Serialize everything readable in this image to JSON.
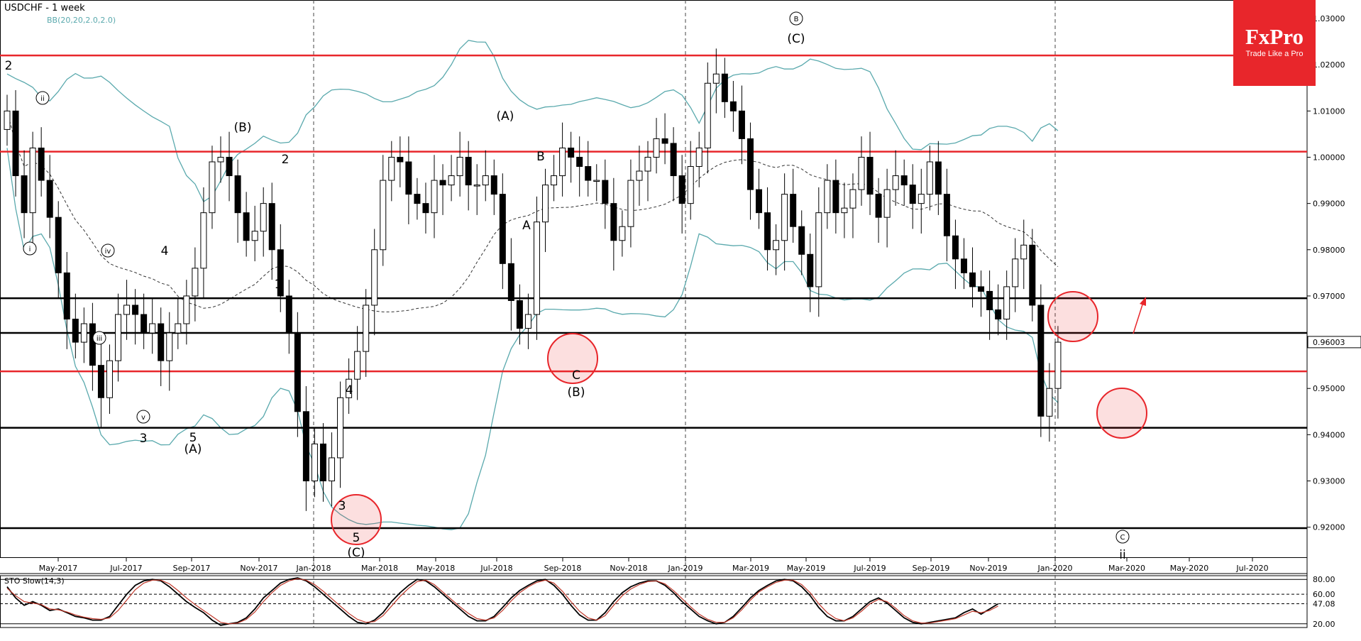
{
  "header": {
    "title": "USDCHF - 1 week",
    "indicator": "BB(20,20,2.0,2.0)"
  },
  "logo": {
    "brand": "FxPro",
    "tagline": "Trade Like a Pro"
  },
  "colors": {
    "accent": "#e8262b",
    "bollinger": "#5aa9ad",
    "resistance": "#e8262b",
    "support": "#000000",
    "candle_up": "#ffffff",
    "candle_down": "#000000",
    "sto_k": "#000000",
    "sto_d": "#c0392b"
  },
  "chart_data": [
    {
      "type": "candlestick",
      "symbol": "USDCHF",
      "timeframe": "1 week",
      "ylim": [
        0.9135,
        1.034
      ],
      "y_ticks": [
        "1.03000",
        "1.02000",
        "1.01000",
        "1.00000",
        "0.99000",
        "0.98000",
        "0.97000",
        "0.96000",
        "0.95000",
        "0.94000",
        "0.93000",
        "0.92000"
      ],
      "current_price": "0.96003",
      "x_ticks": [
        "May-2017",
        "Jul-2017",
        "Sep-2017",
        "Nov-2017",
        "Jan-2018",
        "Mar-2018",
        "May-2018",
        "Jul-2018",
        "Sep-2018",
        "Nov-2018",
        "Jan-2019",
        "Mar-2019",
        "May-2019",
        "Jul-2019",
        "Sep-2019",
        "Nov-2019",
        "Jan-2020",
        "Mar-2020",
        "May-2020",
        "Jul-2020"
      ],
      "resistance_levels": [
        1.022,
        1.0012,
        0.9537
      ],
      "support_levels": [
        0.9695,
        0.962,
        0.9415,
        0.9198
      ],
      "closes": [
        1.01,
        0.996,
        0.988,
        1.002,
        0.995,
        0.987,
        0.975,
        0.965,
        0.96,
        0.964,
        0.955,
        0.948,
        0.956,
        0.966,
        0.968,
        0.966,
        0.962,
        0.964,
        0.956,
        0.962,
        0.964,
        0.97,
        0.976,
        0.988,
        0.999,
        1.0,
        0.996,
        0.988,
        0.982,
        0.984,
        0.99,
        0.98,
        0.97,
        0.962,
        0.945,
        0.93,
        0.938,
        0.93,
        0.935,
        0.948,
        0.952,
        0.958,
        0.968,
        0.98,
        0.995,
        1.0,
        0.999,
        0.992,
        0.99,
        0.988,
        0.995,
        0.994,
        0.996,
        1.0,
        0.994,
        0.994,
        0.996,
        0.992,
        0.977,
        0.969,
        0.963,
        0.966,
        0.986,
        0.994,
        0.996,
        1.002,
        1.0,
        0.998,
        0.995,
        0.995,
        0.99,
        0.982,
        0.985,
        0.995,
        0.997,
        1.0,
        1.004,
        1.003,
        0.996,
        0.99,
        0.998,
        1.002,
        1.016,
        1.018,
        1.012,
        1.01,
        1.004,
        0.993,
        0.988,
        0.98,
        0.982,
        0.992,
        0.985,
        0.979,
        0.972,
        0.988,
        0.995,
        0.988,
        0.989,
        0.993,
        1.0,
        0.992,
        0.987,
        0.993,
        0.996,
        0.994,
        0.99,
        0.992,
        0.999,
        0.992,
        0.983,
        0.978,
        0.975,
        0.972,
        0.971,
        0.967,
        0.965,
        0.972,
        0.978,
        0.981,
        0.968,
        0.944,
        0.95,
        0.96
      ]
    },
    {
      "type": "line",
      "title": "STO Slow(14,3)",
      "ylim": [
        15,
        85
      ],
      "levels": [
        "80.00",
        "60.00",
        "47.08",
        "20.00"
      ],
      "series": [
        {
          "values": [
            70,
            55,
            45,
            50,
            45,
            38,
            40,
            35,
            30,
            28,
            25,
            25,
            30,
            45,
            60,
            72,
            78,
            80,
            78,
            70,
            60,
            50,
            42,
            35,
            25,
            18,
            20,
            22,
            28,
            40,
            55,
            65,
            75,
            80,
            82,
            78,
            70,
            60,
            50,
            40,
            30,
            22,
            20,
            25,
            35,
            50,
            62,
            72,
            80,
            78,
            70,
            60,
            50,
            40,
            30,
            24,
            24,
            30,
            42,
            55,
            65,
            72,
            78,
            80,
            72,
            60,
            45,
            32,
            25,
            25,
            35,
            50,
            62,
            70,
            75,
            78,
            78,
            72,
            62,
            50,
            40,
            30,
            24,
            20,
            22,
            30,
            42,
            55,
            65,
            72,
            78,
            80,
            78,
            70,
            58,
            42,
            30,
            24,
            24,
            30,
            40,
            50,
            55,
            48,
            38,
            28,
            22,
            20,
            22,
            24,
            26,
            28,
            35,
            40,
            33,
            40,
            47
          ]
        },
        {
          "values": [
            68,
            58,
            50,
            48,
            46,
            40,
            39,
            36,
            32,
            29,
            27,
            26,
            28,
            38,
            52,
            66,
            75,
            79,
            79,
            74,
            65,
            55,
            46,
            38,
            30,
            22,
            20,
            21,
            26,
            36,
            50,
            62,
            72,
            78,
            81,
            79,
            73,
            64,
            54,
            44,
            34,
            26,
            22,
            23,
            31,
            44,
            57,
            68,
            77,
            79,
            73,
            63,
            53,
            43,
            34,
            27,
            25,
            28,
            38,
            51,
            62,
            70,
            76,
            79,
            75,
            64,
            50,
            37,
            28,
            25,
            31,
            45,
            58,
            67,
            73,
            77,
            78,
            74,
            65,
            54,
            43,
            33,
            26,
            22,
            22,
            28,
            39,
            52,
            63,
            70,
            76,
            79,
            79,
            73,
            62,
            47,
            35,
            27,
            24,
            28,
            37,
            47,
            53,
            50,
            41,
            31,
            24,
            21,
            21,
            23,
            25,
            27,
            32,
            37,
            35,
            38,
            44
          ]
        }
      ]
    }
  ],
  "annotations": [
    {
      "text": "2"
    },
    {
      "text": "ii"
    },
    {
      "text": "i"
    },
    {
      "text": "iii"
    },
    {
      "text": "iv"
    },
    {
      "text": "v"
    },
    {
      "text": "3"
    },
    {
      "text": "4"
    },
    {
      "text": "5"
    },
    {
      "text": "(A)"
    },
    {
      "text": "(B)"
    },
    {
      "text": "2"
    },
    {
      "text": "1"
    },
    {
      "text": "4"
    },
    {
      "text": "3"
    },
    {
      "text": "5"
    },
    {
      "text": "(C)"
    },
    {
      "text": "(A)"
    },
    {
      "text": "B"
    },
    {
      "text": "A"
    },
    {
      "text": "C"
    },
    {
      "text": "(B)"
    },
    {
      "text": "B"
    },
    {
      "text": "(C)"
    },
    {
      "text": "C"
    },
    {
      "text": "ii"
    }
  ]
}
